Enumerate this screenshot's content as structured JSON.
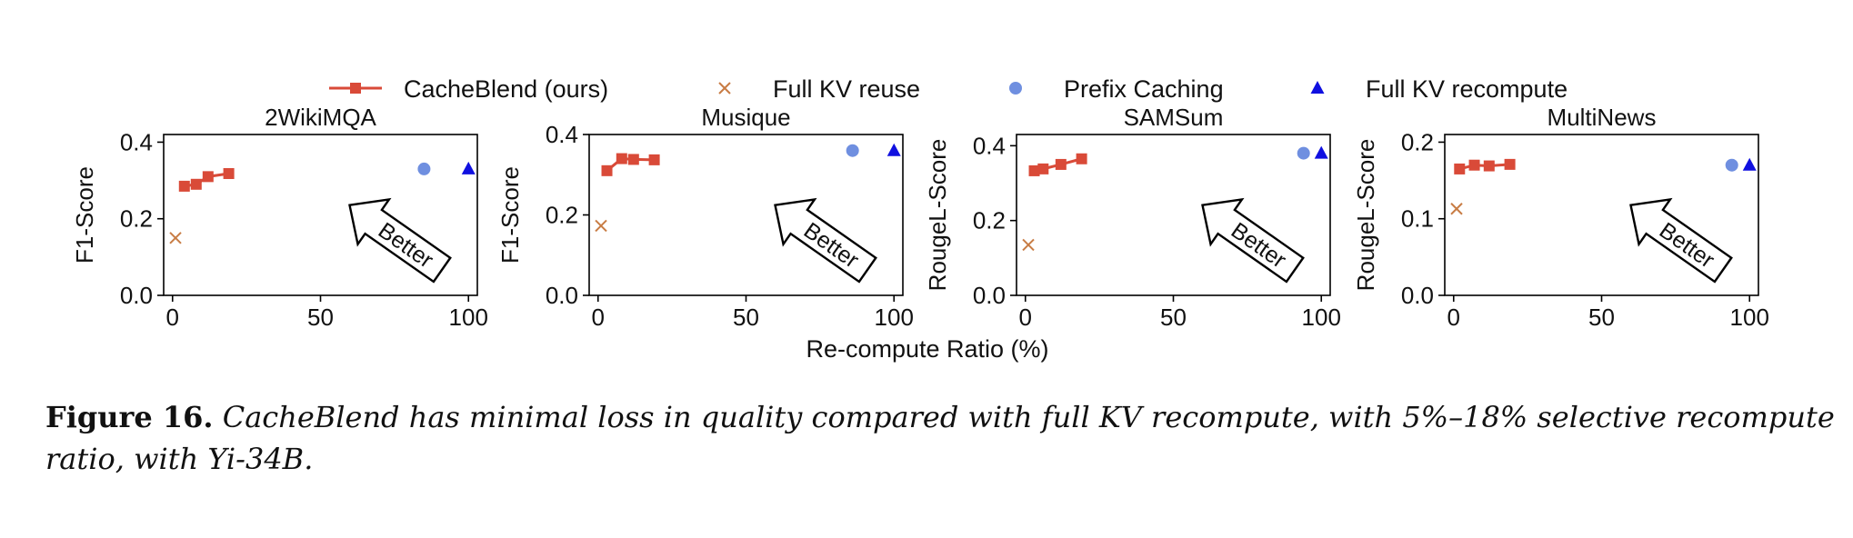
{
  "legend": [
    {
      "label": "CacheBlend (ours)",
      "marker": "square-line",
      "color": "#d94a38"
    },
    {
      "label": "Full KV reuse",
      "marker": "x",
      "color": "#c87c44"
    },
    {
      "label": "Prefix Caching",
      "marker": "circle",
      "color": "#6f8fe0"
    },
    {
      "label": "Full KV recompute",
      "marker": "triangle",
      "color": "#1010e0"
    }
  ],
  "xlabel": "Re-compute Ratio (%)",
  "arrow_label": "Better",
  "caption": {
    "label": "Figure 16.",
    "text": "CacheBlend has minimal loss in quality compared with full KV recompute, with 5%–18% selective recompute ratio, with Yi-34B."
  },
  "chart_data": [
    {
      "type": "scatter",
      "title": "2WikiMQA",
      "ylabel": "F1-Score",
      "xlim": [
        -3,
        103
      ],
      "ylim": [
        0.0,
        0.42
      ],
      "yticks": [
        0.0,
        0.2,
        0.4
      ],
      "ytick_labels": [
        "0.0",
        "0.2",
        "0.4"
      ],
      "xticks": [
        0,
        50,
        100
      ],
      "series": [
        {
          "name": "CacheBlend (ours)",
          "x": [
            4,
            8,
            12,
            19
          ],
          "y": [
            0.285,
            0.29,
            0.31,
            0.318
          ]
        },
        {
          "name": "Full KV reuse",
          "x": [
            1
          ],
          "y": [
            0.15
          ]
        },
        {
          "name": "Prefix Caching",
          "x": [
            85
          ],
          "y": [
            0.33
          ]
        },
        {
          "name": "Full KV recompute",
          "x": [
            100
          ],
          "y": [
            0.33
          ]
        }
      ]
    },
    {
      "type": "scatter",
      "title": "Musique",
      "ylabel": "F1-Score",
      "xlim": [
        -3,
        103
      ],
      "ylim": [
        0.0,
        0.4
      ],
      "yticks": [
        0.0,
        0.2,
        0.4
      ],
      "ytick_labels": [
        "0.0",
        "0.2",
        "0.4"
      ],
      "xticks": [
        0,
        50,
        100
      ],
      "series": [
        {
          "name": "CacheBlend (ours)",
          "x": [
            3,
            8,
            12,
            19
          ],
          "y": [
            0.31,
            0.34,
            0.338,
            0.337
          ]
        },
        {
          "name": "Full KV reuse",
          "x": [
            1
          ],
          "y": [
            0.173
          ]
        },
        {
          "name": "Prefix Caching",
          "x": [
            86
          ],
          "y": [
            0.36
          ]
        },
        {
          "name": "Full KV recompute",
          "x": [
            100
          ],
          "y": [
            0.36
          ]
        }
      ]
    },
    {
      "type": "scatter",
      "title": "SAMSum",
      "ylabel": "RougeL-Score",
      "xlim": [
        -3,
        103
      ],
      "ylim": [
        0.0,
        0.43
      ],
      "yticks": [
        0.0,
        0.2,
        0.4
      ],
      "ytick_labels": [
        "0.0",
        "0.2",
        "0.4"
      ],
      "xticks": [
        0,
        50,
        100
      ],
      "series": [
        {
          "name": "CacheBlend (ours)",
          "x": [
            3,
            6,
            12,
            19
          ],
          "y": [
            0.333,
            0.338,
            0.35,
            0.365
          ]
        },
        {
          "name": "Full KV reuse",
          "x": [
            1
          ],
          "y": [
            0.135
          ]
        },
        {
          "name": "Prefix Caching",
          "x": [
            94
          ],
          "y": [
            0.38
          ]
        },
        {
          "name": "Full KV recompute",
          "x": [
            100
          ],
          "y": [
            0.38
          ]
        }
      ]
    },
    {
      "type": "scatter",
      "title": "MultiNews",
      "ylabel": "RougeL-Score",
      "xlim": [
        -3,
        103
      ],
      "ylim": [
        0.0,
        0.21
      ],
      "yticks": [
        0.0,
        0.1,
        0.2
      ],
      "ytick_labels": [
        "0.0",
        "0.1",
        "0.2"
      ],
      "xticks": [
        0,
        50,
        100
      ],
      "series": [
        {
          "name": "CacheBlend (ours)",
          "x": [
            2,
            7,
            12,
            19
          ],
          "y": [
            0.165,
            0.17,
            0.169,
            0.171
          ]
        },
        {
          "name": "Full KV reuse",
          "x": [
            1
          ],
          "y": [
            0.113
          ]
        },
        {
          "name": "Prefix Caching",
          "x": [
            94
          ],
          "y": [
            0.17
          ]
        },
        {
          "name": "Full KV recompute",
          "x": [
            100
          ],
          "y": [
            0.17
          ]
        }
      ]
    }
  ]
}
